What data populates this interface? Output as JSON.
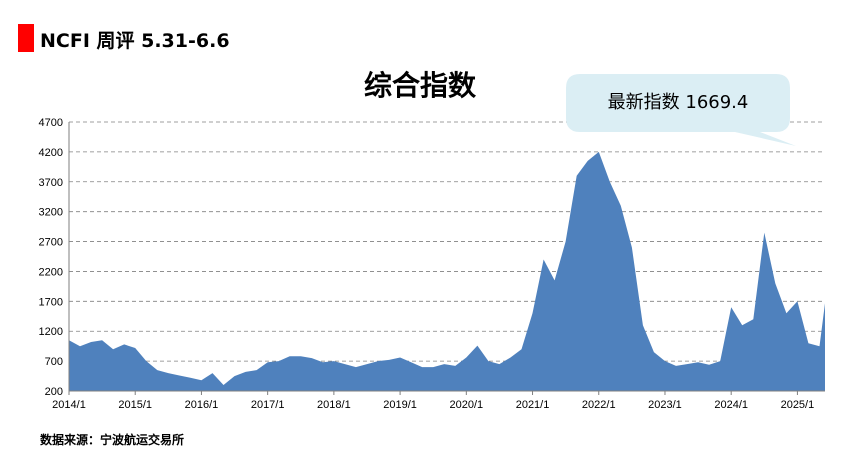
{
  "header": {
    "title": "NCFI 周评 5.31-6.6"
  },
  "callout": {
    "text": "最新指数 1669.4"
  },
  "source": "数据来源：宁波航运交易所",
  "colors": {
    "area": "#4f81bd",
    "header_mark": "#ff0000",
    "callout_bg": "#dbeef4",
    "grid": "#808080"
  },
  "chart_data": {
    "type": "area",
    "title": "综合指数",
    "xlabel": "",
    "ylabel": "",
    "ylim": [
      200,
      4700
    ],
    "yticks": [
      200,
      700,
      1200,
      1700,
      2200,
      2700,
      3200,
      3700,
      4200,
      4700
    ],
    "xlim": [
      "2014-01",
      "2025-06"
    ],
    "xticks": [
      "2014/1",
      "2015/1",
      "2016/1",
      "2017/1",
      "2018/1",
      "2019/1",
      "2020/1",
      "2021/1",
      "2022/1",
      "2023/1",
      "2024/1",
      "2025/1"
    ],
    "grid": "horizontal-dashed",
    "series": [
      {
        "x": [
          "2014-01",
          "2014-03",
          "2014-05",
          "2014-07",
          "2014-09",
          "2014-11",
          "2015-01",
          "2015-03",
          "2015-05",
          "2015-07",
          "2015-09",
          "2015-11",
          "2016-01",
          "2016-03",
          "2016-05",
          "2016-07",
          "2016-09",
          "2016-11",
          "2017-01",
          "2017-03",
          "2017-05",
          "2017-07",
          "2017-09",
          "2017-11",
          "2018-01",
          "2018-03",
          "2018-05",
          "2018-07",
          "2018-09",
          "2018-11",
          "2019-01",
          "2019-03",
          "2019-05",
          "2019-07",
          "2019-09",
          "2019-11",
          "2020-01",
          "2020-03",
          "2020-05",
          "2020-07",
          "2020-09",
          "2020-11",
          "2021-01",
          "2021-03",
          "2021-05",
          "2021-07",
          "2021-09",
          "2021-11",
          "2022-01",
          "2022-03",
          "2022-05",
          "2022-07",
          "2022-09",
          "2022-11",
          "2023-01",
          "2023-03",
          "2023-05",
          "2023-07",
          "2023-09",
          "2023-11",
          "2024-01",
          "2024-03",
          "2024-05",
          "2024-07",
          "2024-09",
          "2024-11",
          "2025-01",
          "2025-03",
          "2025-05",
          "2025-06"
        ],
        "values": [
          1050,
          950,
          1020,
          1050,
          900,
          980,
          920,
          700,
          550,
          500,
          460,
          420,
          380,
          500,
          300,
          450,
          520,
          550,
          680,
          700,
          780,
          780,
          750,
          680,
          700,
          650,
          600,
          650,
          700,
          720,
          760,
          680,
          600,
          600,
          650,
          620,
          760,
          960,
          700,
          650,
          760,
          900,
          1500,
          2400,
          2050,
          2700,
          3800,
          4050,
          4200,
          3700,
          3300,
          2600,
          1300,
          850,
          700,
          620,
          650,
          680,
          640,
          700,
          1600,
          1300,
          1400,
          2850,
          2000,
          1500,
          1700,
          1000,
          950,
          1669
        ]
      }
    ]
  }
}
